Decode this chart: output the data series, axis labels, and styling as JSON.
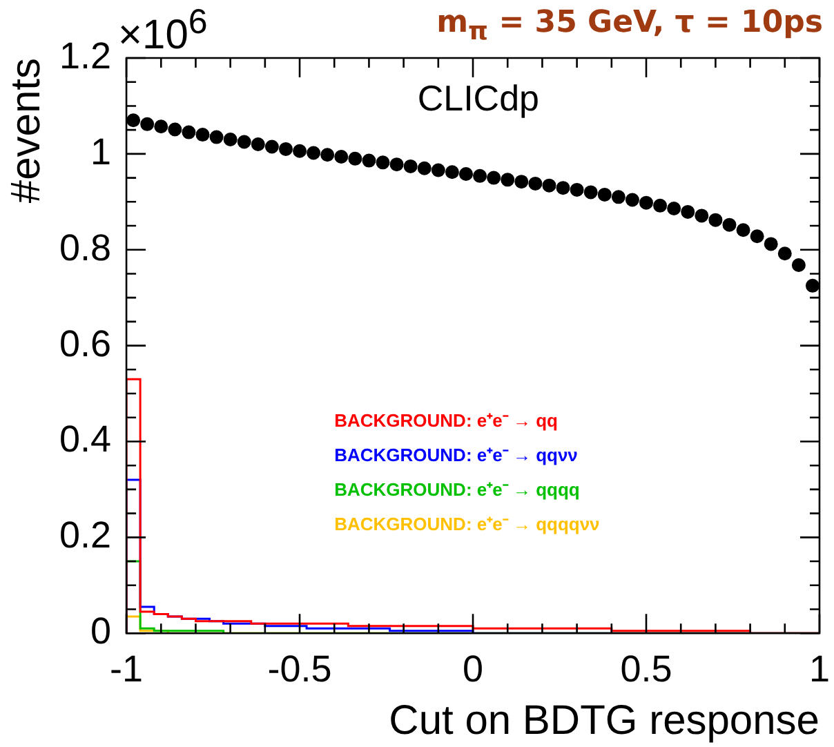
{
  "chart_data": {
    "type": "histogram",
    "title": "m$_{π}$ = 35 GeV, τ = 10ps",
    "xlabel": "Cut on BDTG response",
    "ylabel": "#events",
    "annotations": [
      "CLICdp",
      "×10$^{6}$"
    ],
    "bins": [
      -1,
      -0.96,
      -0.92,
      -0.88,
      -0.84,
      -0.8,
      -0.76,
      -0.72,
      -0.68,
      -0.64,
      -0.6,
      -0.56,
      -0.52,
      -0.48,
      -0.44,
      -0.4,
      -0.36,
      -0.32,
      -0.28,
      -0.24,
      -0.2,
      -0.16,
      -0.12,
      -0.08,
      -0.04,
      0,
      0.04,
      0.08,
      0.12,
      0.16,
      0.2,
      0.24,
      0.28,
      0.32,
      0.36,
      0.4,
      0.44,
      0.48,
      0.52,
      0.56,
      0.6,
      0.64,
      0.68,
      0.72,
      0.76,
      0.8,
      0.84,
      0.88,
      0.92,
      0.96,
      1
    ],
    "xlim": [
      -1,
      1
    ],
    "ylim": [
      0,
      1.2
    ],
    "xticks": [
      -1,
      {
        "value": -0.9,
        "label": null
      },
      {
        "value": -0.8,
        "label": null
      },
      {
        "value": -0.7,
        "label": null
      },
      {
        "value": -0.6,
        "label": null
      },
      -0.5,
      {
        "value": -0.4,
        "label": null
      },
      {
        "value": -0.3,
        "label": null
      },
      {
        "value": -0.2,
        "label": null
      },
      {
        "value": -0.1,
        "label": null
      },
      0,
      {
        "value": 0.1,
        "label": null
      },
      {
        "value": 0.2,
        "label": null
      },
      {
        "value": 0.3,
        "label": null
      },
      {
        "value": 0.4,
        "label": null
      },
      0.5,
      {
        "value": 0.6,
        "label": null
      },
      {
        "value": 0.7,
        "label": null
      },
      {
        "value": 0.8,
        "label": null
      },
      {
        "value": 0.9,
        "label": null
      },
      1
    ],
    "yticks": [
      0,
      {
        "value": 0.05,
        "label": null
      },
      {
        "value": 0.1,
        "label": null
      },
      {
        "value": 0.15,
        "label": null
      },
      0.2,
      {
        "value": 0.25,
        "label": null
      },
      {
        "value": 0.3,
        "label": null
      },
      {
        "value": 0.35,
        "label": null
      },
      0.4,
      {
        "value": 0.45,
        "label": null
      },
      {
        "value": 0.5,
        "label": null
      },
      {
        "value": 0.55,
        "label": null
      },
      0.6,
      {
        "value": 0.65,
        "label": null
      },
      {
        "value": 0.7,
        "label": null
      },
      {
        "value": 0.75,
        "label": null
      },
      0.8,
      {
        "value": 0.85,
        "label": null
      },
      {
        "value": 0.9,
        "label": null
      },
      {
        "value": 0.95,
        "label": null
      },
      1,
      {
        "value": 1.05,
        "label": null
      },
      {
        "value": 1.1,
        "label": null
      },
      {
        "value": 1.15,
        "label": null
      },
      1.2
    ],
    "legend": "right",
    "marker": "circle",
    "series": [
      {
        "name": "BACKGROUND: e⁺e⁻ → qq",
        "color": "#ff0000",
        "values": [
          0.53,
          0.045,
          0.04,
          0.035,
          0.03,
          0.025,
          0.025,
          0.025,
          0.025,
          0.02,
          0.02,
          0.02,
          0.02,
          0.02,
          0.02,
          0.02,
          0.015,
          0.015,
          0.015,
          0.015,
          0.015,
          0.015,
          0.015,
          0.015,
          0.015,
          0.01,
          0.01,
          0.01,
          0.01,
          0.01,
          0.01,
          0.01,
          0.01,
          0.01,
          0.01,
          0.005,
          0.005,
          0.005,
          0.005,
          0.005,
          0.005,
          0.005,
          0.005,
          0.005,
          0.005,
          0,
          0,
          0,
          0,
          0
        ]
      },
      {
        "name": "BACKGROUND: e⁺e⁻ → qqνν",
        "color": "#0000ff",
        "values": [
          0.32,
          0.055,
          0.04,
          0.035,
          0.03,
          0.03,
          0.025,
          0.02,
          0.02,
          0.02,
          0.015,
          0.015,
          0.015,
          0.01,
          0.01,
          0.01,
          0.01,
          0.01,
          0.01,
          0.005,
          0.005,
          0.005,
          0.005,
          0.005,
          0.005,
          0,
          0,
          0,
          0,
          0,
          0,
          0,
          0,
          0,
          0,
          0,
          0,
          0,
          0,
          0,
          0,
          0,
          0,
          0,
          0,
          0,
          0,
          0,
          0,
          0
        ]
      },
      {
        "name": "BACKGROUND: e⁺e⁻ → qqqq",
        "color": "#00c000",
        "values": [
          0.15,
          0.01,
          0.005,
          0.005,
          0.005,
          0.005,
          0.005,
          0,
          0,
          0,
          0,
          0,
          0,
          0,
          0,
          0,
          0,
          0,
          0,
          0,
          0,
          0,
          0,
          0,
          0,
          0,
          0,
          0,
          0,
          0,
          0,
          0,
          0,
          0,
          0,
          0,
          0,
          0,
          0,
          0,
          0,
          0,
          0,
          0,
          0,
          0,
          0,
          0,
          0,
          0
        ]
      },
      {
        "name": "BACKGROUND: e⁺e⁻ → qqqqνν",
        "color": "#ffc000",
        "values": [
          0.035,
          0.005,
          0.005,
          0,
          0,
          0,
          0,
          0,
          0,
          0,
          0,
          0,
          0,
          0,
          0,
          0,
          0,
          0,
          0,
          0,
          0,
          0,
          0,
          0,
          0,
          0,
          0,
          0,
          0,
          0,
          0,
          0,
          0,
          0,
          0,
          0,
          0,
          0,
          0,
          0,
          0,
          0,
          0,
          0,
          0,
          0,
          0,
          0,
          0,
          0
        ]
      },
      {
        "type": "scatter",
        "color": "#000000",
        "x": [
          -0.98,
          -0.94,
          -0.9,
          -0.86,
          -0.82,
          -0.78,
          -0.74,
          -0.7,
          -0.66,
          -0.62,
          -0.58,
          -0.54,
          -0.5,
          -0.46,
          -0.42,
          -0.38,
          -0.34,
          -0.3,
          -0.26,
          -0.22,
          -0.18,
          -0.14,
          -0.1,
          -0.06,
          -0.02,
          0.02,
          0.06,
          0.1,
          0.14,
          0.18,
          0.22,
          0.26,
          0.3,
          0.34,
          0.38,
          0.42,
          0.46,
          0.5,
          0.54,
          0.58,
          0.62,
          0.66,
          0.7,
          0.74,
          0.78,
          0.82,
          0.86,
          0.9,
          0.94,
          0.98
        ],
        "values": [
          1.07,
          1.062,
          1.057,
          1.051,
          1.045,
          1.04,
          1.035,
          1.03,
          1.025,
          1.02,
          1.015,
          1.01,
          1.006,
          1.002,
          0.998,
          0.994,
          0.99,
          0.986,
          0.982,
          0.978,
          0.974,
          0.97,
          0.966,
          0.962,
          0.958,
          0.954,
          0.95,
          0.946,
          0.942,
          0.938,
          0.934,
          0.929,
          0.925,
          0.92,
          0.915,
          0.91,
          0.904,
          0.898,
          0.892,
          0.886,
          0.879,
          0.871,
          0.862,
          0.852,
          0.841,
          0.828,
          0.812,
          0.792,
          0.768,
          0.725
        ]
      }
    ]
  }
}
